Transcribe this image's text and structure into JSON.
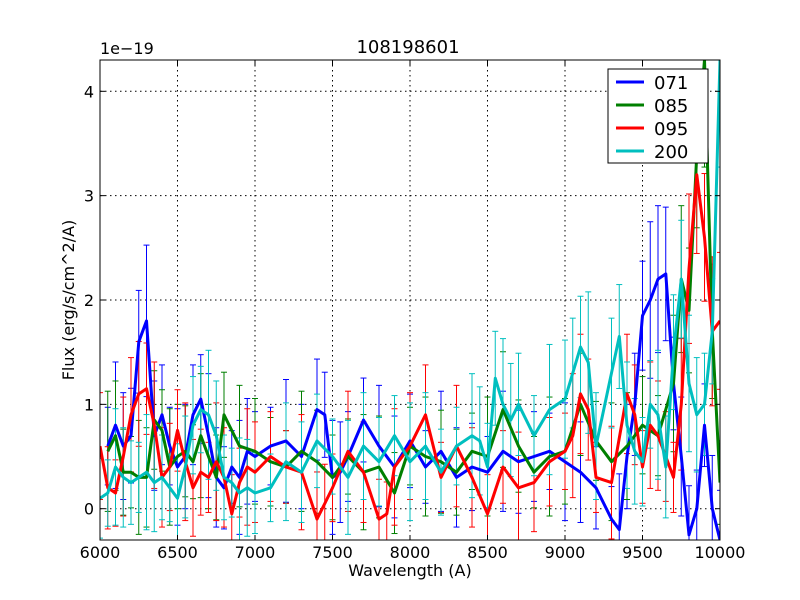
{
  "chart_data": {
    "type": "line",
    "title": "108198601",
    "xlabel": "Wavelength (A)",
    "ylabel": "Flux (erg/s/cm^2/A)",
    "y_offset_label": "1e−19",
    "xlim": [
      6000,
      10000
    ],
    "ylim": [
      -0.3,
      4.3
    ],
    "x_ticks": [
      6000,
      6500,
      7000,
      7500,
      8000,
      8500,
      9000,
      9500,
      10000
    ],
    "x_tick_labels": [
      "6000",
      "6500",
      "7000",
      "7500",
      "8000",
      "8500",
      "9000",
      "9500",
      "10000"
    ],
    "y_ticks": [
      0,
      1,
      2,
      3,
      4
    ],
    "y_tick_labels": [
      "0",
      "1",
      "2",
      "3",
      "4"
    ],
    "grid": true,
    "legend_position": "top-right",
    "series": [
      {
        "name": "071",
        "color": "#0000ff",
        "x": [
          6050,
          6100,
          6150,
          6200,
          6250,
          6300,
          6350,
          6400,
          6450,
          6500,
          6550,
          6600,
          6650,
          6700,
          6750,
          6800,
          6850,
          6900,
          6950,
          7000,
          7100,
          7200,
          7300,
          7400,
          7450,
          7500,
          7550,
          7600,
          7700,
          7800,
          7900,
          8000,
          8100,
          8200,
          8300,
          8400,
          8500,
          8600,
          8700,
          8800,
          8900,
          9000,
          9100,
          9200,
          9300,
          9350,
          9400,
          9450,
          9500,
          9550,
          9600,
          9650,
          9700,
          9750,
          9800,
          9850,
          9900,
          9950,
          10000
        ],
        "y": [
          0.6,
          0.8,
          0.6,
          0.7,
          1.6,
          1.8,
          0.7,
          0.9,
          0.6,
          0.4,
          0.5,
          0.9,
          1.05,
          0.7,
          0.3,
          0.2,
          0.4,
          0.3,
          0.55,
          0.5,
          0.6,
          0.65,
          0.5,
          0.95,
          0.9,
          0.3,
          0.35,
          0.5,
          0.85,
          0.6,
          0.4,
          0.65,
          0.4,
          0.55,
          0.3,
          0.4,
          0.35,
          0.55,
          0.45,
          0.5,
          0.55,
          0.45,
          0.35,
          0.2,
          -0.1,
          -0.2,
          0.5,
          1.0,
          1.85,
          2.0,
          2.2,
          2.25,
          1.2,
          0.5,
          -0.25,
          0.0,
          0.8,
          0.0,
          -0.3
        ]
      },
      {
        "name": "085",
        "color": "#007f00",
        "x": [
          6050,
          6100,
          6150,
          6200,
          6250,
          6300,
          6350,
          6400,
          6450,
          6500,
          6550,
          6600,
          6650,
          6700,
          6750,
          6800,
          6900,
          7000,
          7100,
          7200,
          7300,
          7400,
          7500,
          7600,
          7700,
          7800,
          7900,
          8000,
          8100,
          8200,
          8300,
          8400,
          8500,
          8600,
          8700,
          8800,
          8900,
          9000,
          9100,
          9200,
          9300,
          9400,
          9500,
          9600,
          9700,
          9750,
          9800,
          9850,
          9900,
          9950,
          10000
        ],
        "y": [
          0.55,
          0.7,
          0.35,
          0.35,
          0.3,
          0.3,
          0.85,
          0.75,
          0.4,
          0.5,
          0.55,
          0.45,
          0.7,
          0.5,
          0.3,
          0.9,
          0.6,
          0.55,
          0.45,
          0.4,
          0.55,
          0.45,
          0.3,
          0.5,
          0.35,
          0.4,
          0.15,
          0.6,
          0.5,
          0.45,
          0.35,
          0.55,
          0.5,
          0.95,
          0.6,
          0.35,
          0.5,
          0.55,
          1.0,
          0.65,
          0.45,
          0.6,
          0.8,
          0.7,
          1.2,
          2.2,
          1.9,
          3.4,
          4.3,
          1.7,
          0.25
        ]
      },
      {
        "name": "095",
        "color": "#ff0000",
        "x": [
          6000,
          6050,
          6100,
          6150,
          6200,
          6250,
          6300,
          6350,
          6400,
          6450,
          6500,
          6550,
          6600,
          6650,
          6700,
          6750,
          6800,
          6850,
          6900,
          6950,
          7000,
          7100,
          7200,
          7300,
          7400,
          7450,
          7500,
          7600,
          7700,
          7800,
          7850,
          7900,
          8000,
          8100,
          8200,
          8300,
          8400,
          8500,
          8600,
          8700,
          8800,
          8900,
          9000,
          9050,
          9100,
          9150,
          9200,
          9300,
          9400,
          9450,
          9500,
          9550,
          9600,
          9650,
          9700,
          9750,
          9800,
          9850,
          9900,
          9950,
          10000
        ],
        "y": [
          0.6,
          0.2,
          0.15,
          0.5,
          0.9,
          1.1,
          1.15,
          0.8,
          0.3,
          0.4,
          0.75,
          0.45,
          0.2,
          0.35,
          0.3,
          0.45,
          0.3,
          -0.05,
          0.25,
          0.4,
          0.35,
          0.5,
          0.4,
          0.35,
          -0.1,
          0.05,
          0.2,
          0.55,
          0.35,
          -0.1,
          -0.05,
          0.4,
          0.6,
          0.9,
          0.3,
          0.6,
          0.3,
          -0.05,
          0.4,
          0.2,
          0.25,
          0.45,
          0.55,
          0.7,
          1.1,
          0.95,
          0.3,
          0.25,
          1.1,
          0.9,
          0.4,
          0.8,
          0.7,
          0.5,
          0.3,
          1.0,
          2.3,
          3.2,
          2.6,
          1.7,
          1.8
        ]
      },
      {
        "name": "200",
        "color": "#00bfbf",
        "x": [
          6000,
          6050,
          6100,
          6150,
          6200,
          6250,
          6300,
          6350,
          6400,
          6450,
          6500,
          6550,
          6600,
          6650,
          6700,
          6750,
          6800,
          6850,
          6900,
          6950,
          7000,
          7100,
          7200,
          7300,
          7400,
          7500,
          7600,
          7700,
          7800,
          7900,
          8000,
          8100,
          8200,
          8300,
          8400,
          8450,
          8500,
          8550,
          8600,
          8650,
          8700,
          8800,
          8900,
          9000,
          9050,
          9100,
          9150,
          9200,
          9300,
          9350,
          9400,
          9450,
          9500,
          9550,
          9600,
          9650,
          9700,
          9750,
          9800,
          9850,
          9900,
          9950,
          10000
        ],
        "y": [
          0.1,
          0.15,
          0.4,
          0.3,
          0.25,
          0.3,
          0.35,
          0.25,
          0.3,
          0.2,
          0.1,
          0.4,
          0.8,
          0.95,
          0.9,
          0.7,
          0.3,
          0.25,
          0.15,
          0.2,
          0.15,
          0.2,
          0.45,
          0.35,
          0.65,
          0.5,
          0.3,
          0.6,
          0.45,
          0.7,
          0.45,
          0.6,
          0.35,
          0.6,
          0.7,
          0.65,
          0.4,
          1.25,
          1.0,
          0.85,
          1.0,
          0.7,
          0.95,
          1.05,
          1.3,
          1.55,
          1.4,
          0.6,
          1.3,
          1.65,
          0.8,
          0.55,
          0.45,
          1.0,
          0.9,
          0.4,
          1.5,
          2.2,
          1.2,
          0.9,
          1.0,
          1.7,
          4.3
        ]
      }
    ]
  }
}
